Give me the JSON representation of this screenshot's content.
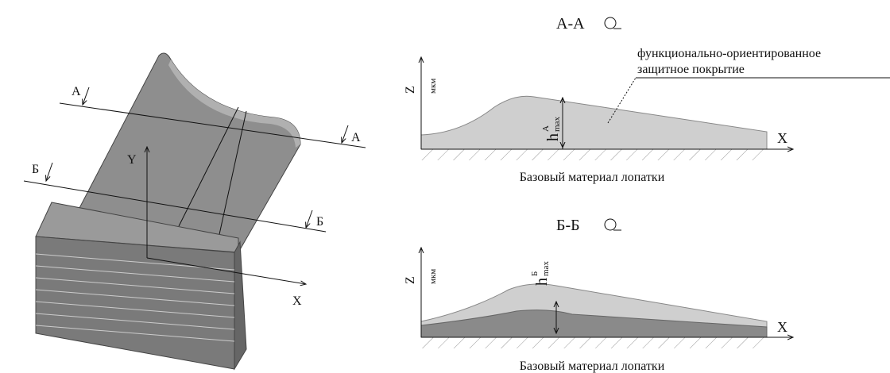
{
  "blade_view": {
    "section_marks": [
      "А",
      "А",
      "Б",
      "Б"
    ],
    "axis_y": "Y",
    "axis_x": "X"
  },
  "sections": [
    {
      "title": "А-А",
      "annotation": [
        "функционально-ориентированное",
        "защитное покрытие"
      ],
      "axis_z": "Z",
      "unit": "мкм",
      "height_label": {
        "symbol": "h",
        "superscript": "А",
        "subscript": "max"
      },
      "axis_x": "X",
      "base_label": "Базовый материал лопатки"
    },
    {
      "title": "Б-Б",
      "axis_z": "Z",
      "unit": "мкм",
      "height_label": {
        "symbol": "h",
        "superscript": "Б",
        "subscript": "max"
      },
      "axis_x": "X",
      "base_label": "Базовый материал лопатки"
    }
  ]
}
